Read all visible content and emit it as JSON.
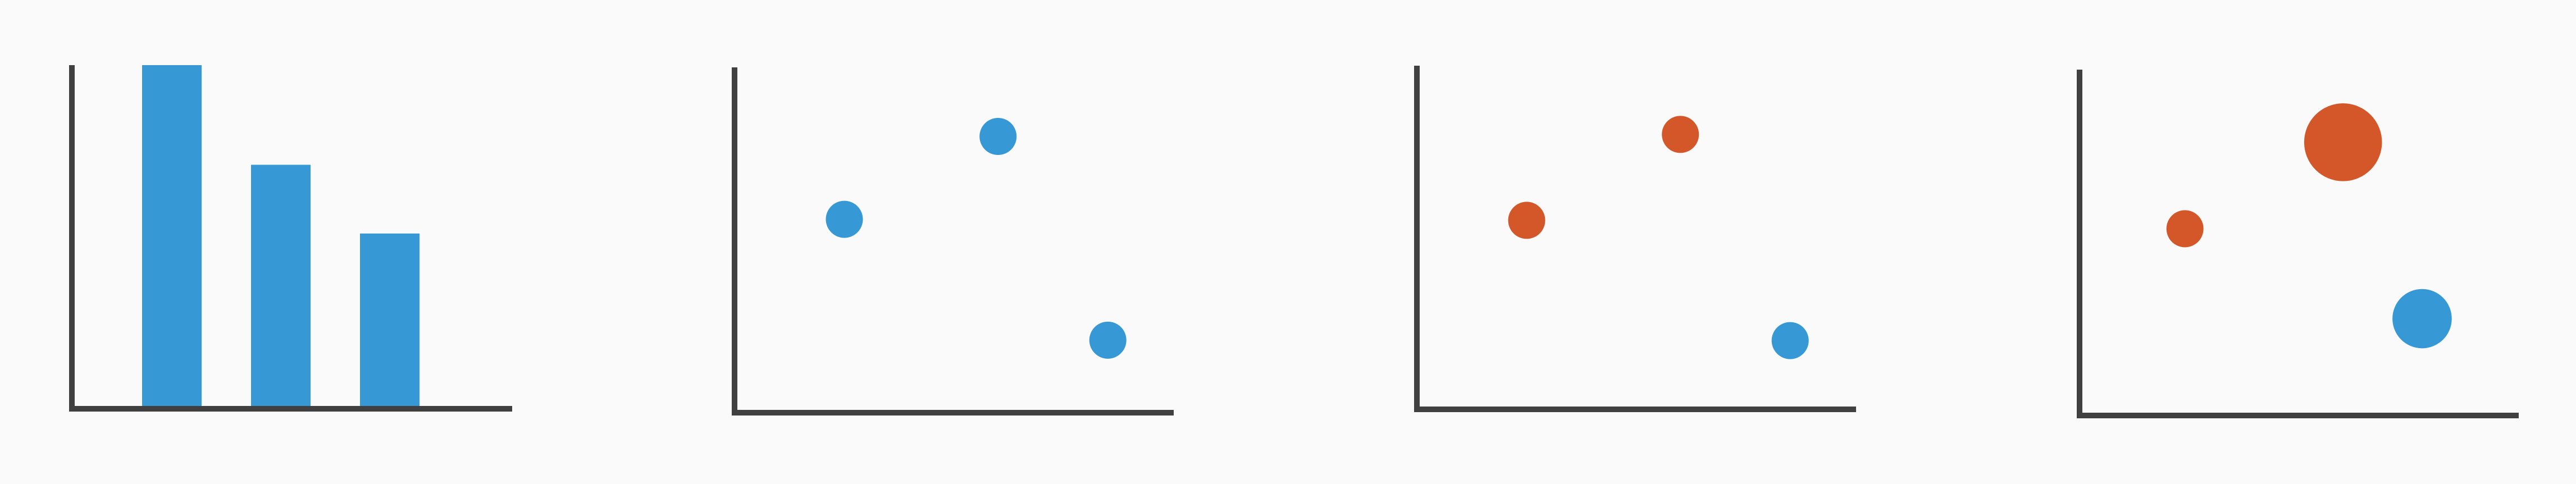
{
  "colors": {
    "background": "#fafafa",
    "axis": "#404040",
    "blue": "#3698d5",
    "orange": "#d4572a"
  },
  "chart_data": [
    {
      "type": "bar",
      "categories": [
        "",
        "",
        ""
      ],
      "values": [
        10,
        7.1,
        5.1
      ],
      "ylim": [
        0,
        10
      ],
      "xlabel": "",
      "ylabel": "",
      "title": "",
      "grid": false,
      "color": "blue"
    },
    {
      "type": "scatter",
      "xlim": [
        0,
        10
      ],
      "ylim": [
        0,
        10
      ],
      "points": [
        {
          "x": 2.5,
          "y": 5.6,
          "size": 1,
          "color": "blue"
        },
        {
          "x": 6.0,
          "y": 8.0,
          "size": 1,
          "color": "blue"
        },
        {
          "x": 8.5,
          "y": 2.1,
          "size": 1,
          "color": "blue"
        }
      ],
      "xlabel": "",
      "ylabel": "",
      "title": "",
      "grid": false
    },
    {
      "type": "scatter",
      "xlim": [
        0,
        10
      ],
      "ylim": [
        0,
        10
      ],
      "points": [
        {
          "x": 2.5,
          "y": 5.5,
          "size": 1,
          "color": "orange"
        },
        {
          "x": 6.0,
          "y": 8.0,
          "size": 1,
          "color": "orange"
        },
        {
          "x": 8.5,
          "y": 2.0,
          "size": 1,
          "color": "blue"
        }
      ],
      "xlabel": "",
      "ylabel": "",
      "title": "",
      "grid": false
    },
    {
      "type": "scatter",
      "xlim": [
        0,
        10
      ],
      "ylim": [
        0,
        10
      ],
      "points": [
        {
          "x": 2.4,
          "y": 5.4,
          "size": 1,
          "color": "orange"
        },
        {
          "x": 6.0,
          "y": 7.9,
          "size": 2.1,
          "color": "orange"
        },
        {
          "x": 7.8,
          "y": 2.8,
          "size": 1.6,
          "color": "blue"
        }
      ],
      "xlabel": "",
      "ylabel": "",
      "title": "",
      "grid": false
    }
  ]
}
